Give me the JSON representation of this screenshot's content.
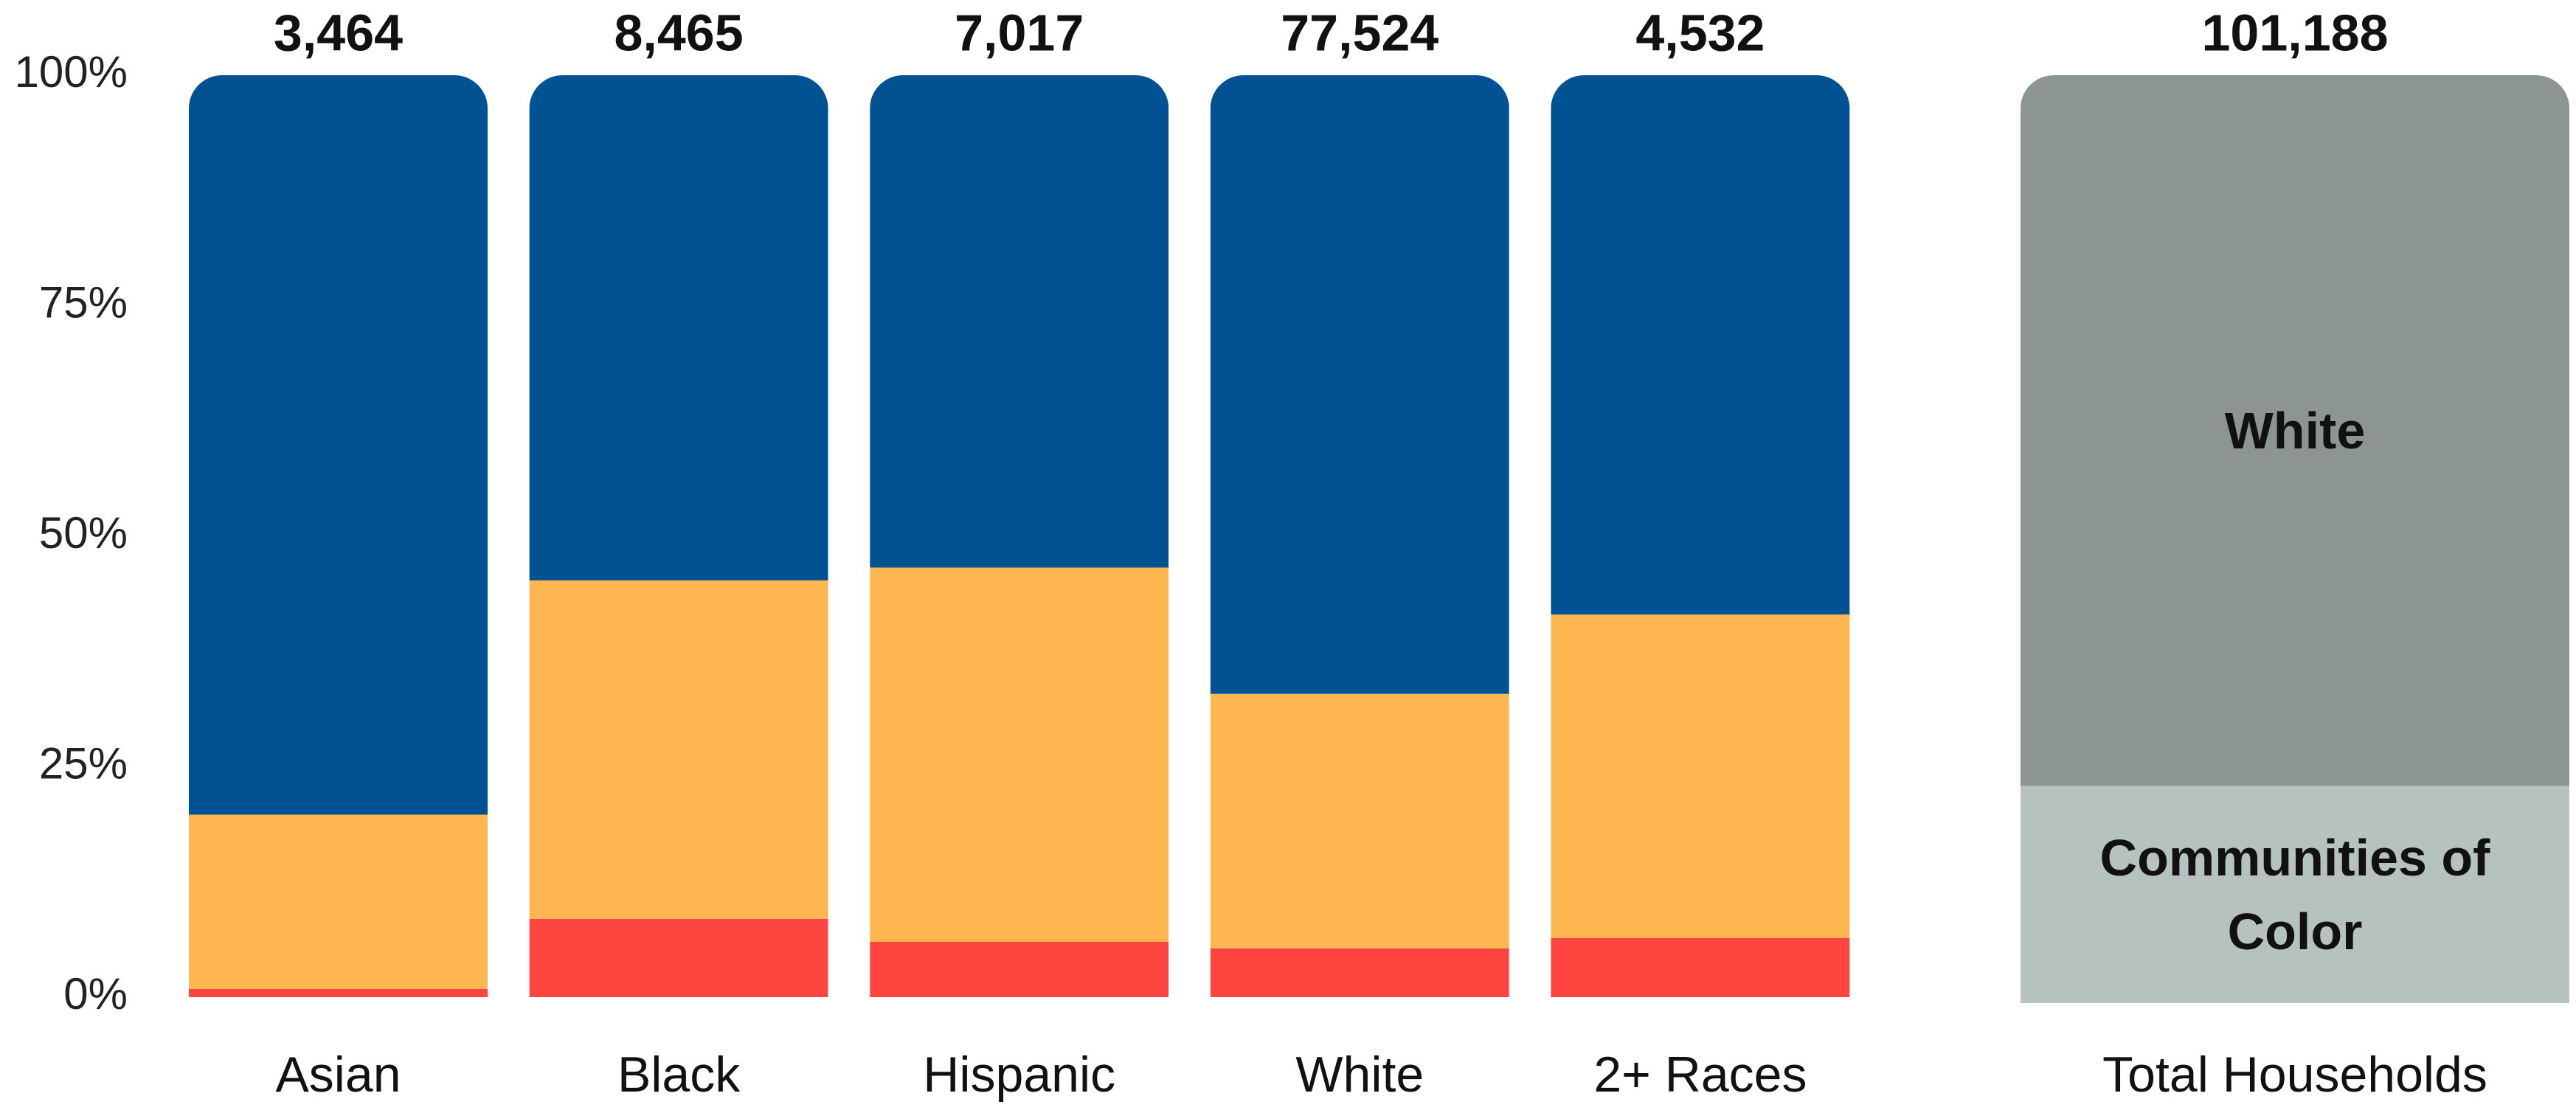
{
  "chart_data": [
    {
      "type": "stacked_bar",
      "categories": [
        "Asian",
        "Black",
        "Hispanic",
        "White",
        "2+ Races"
      ],
      "series": [
        {
          "color": "#ff4540",
          "values": [
            0.9,
            8.5,
            6.0,
            5.3,
            6.4
          ]
        },
        {
          "color": "#fdb650",
          "values": [
            18.9,
            36.7,
            40.6,
            27.6,
            35.1
          ]
        },
        {
          "color": "#005293",
          "values": [
            80.2,
            54.8,
            53.4,
            67.1,
            58.5
          ]
        }
      ],
      "totals": {
        "values": [
          3464,
          8465,
          7017,
          77524,
          4532
        ],
        "value_labels": [
          "3,464",
          "8,465",
          "7,017",
          "77,524",
          "4,532"
        ]
      },
      "ylim": [
        0,
        100
      ],
      "yticks": [
        {
          "value": 0,
          "label": "0%"
        },
        {
          "value": 25,
          "label": "25%"
        },
        {
          "value": 50,
          "label": "50%"
        },
        {
          "value": 75,
          "label": "75%"
        },
        {
          "value": 100,
          "label": "100%"
        }
      ]
    },
    {
      "type": "stacked_bar",
      "categories": [
        "Total Households"
      ],
      "series": [
        {
          "name": "Communities of Color",
          "color": "#b5c2c0",
          "values": [
            23.4
          ]
        },
        {
          "name": "White",
          "color": "#8c9592",
          "values": [
            76.6
          ]
        }
      ],
      "totals": {
        "values": [
          101188
        ],
        "value_labels": [
          "101,188"
        ]
      },
      "ylim": [
        0,
        100
      ]
    }
  ]
}
